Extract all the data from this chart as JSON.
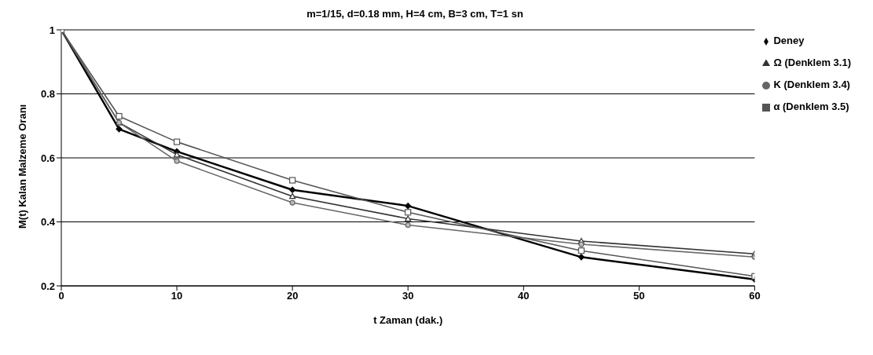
{
  "chart_data": {
    "type": "line",
    "title": "m=1/15, d=0.18 mm, H=4 cm, B=3 cm, T=1 sn",
    "xlabel": "t Zaman (dak.)",
    "ylabel": "M(t) Kalan Malzeme Oranı",
    "x": [
      0,
      5,
      10,
      20,
      30,
      45,
      60
    ],
    "series": [
      {
        "name": "Deney",
        "color": "#000000",
        "marker": "diamond",
        "values": [
          1,
          0.69,
          0.62,
          0.5,
          0.45,
          0.29,
          0.22
        ]
      },
      {
        "name": "Ω (Denklem 3.1)",
        "color": "#333333",
        "marker": "triangle",
        "values": [
          1,
          0.71,
          0.61,
          0.48,
          0.41,
          0.34,
          0.3
        ]
      },
      {
        "name": "K (Denklem 3.4)",
        "color": "#666666",
        "marker": "circle",
        "values": [
          1,
          0.71,
          0.59,
          0.46,
          0.39,
          0.33,
          0.29
        ]
      },
      {
        "name": "α (Denklem 3.5)",
        "color": "#555555",
        "marker": "square",
        "values": [
          1,
          0.73,
          0.65,
          0.53,
          0.43,
          0.31,
          0.23
        ]
      }
    ],
    "xlim": [
      0,
      60
    ],
    "xticks": [
      0,
      10,
      20,
      30,
      40,
      50,
      60
    ],
    "ylim": [
      0.2,
      1
    ],
    "yticks": [
      0.2,
      0.4,
      0.6,
      0.8,
      1
    ],
    "grid": "y",
    "legend": "right",
    "line_style": "solid"
  }
}
